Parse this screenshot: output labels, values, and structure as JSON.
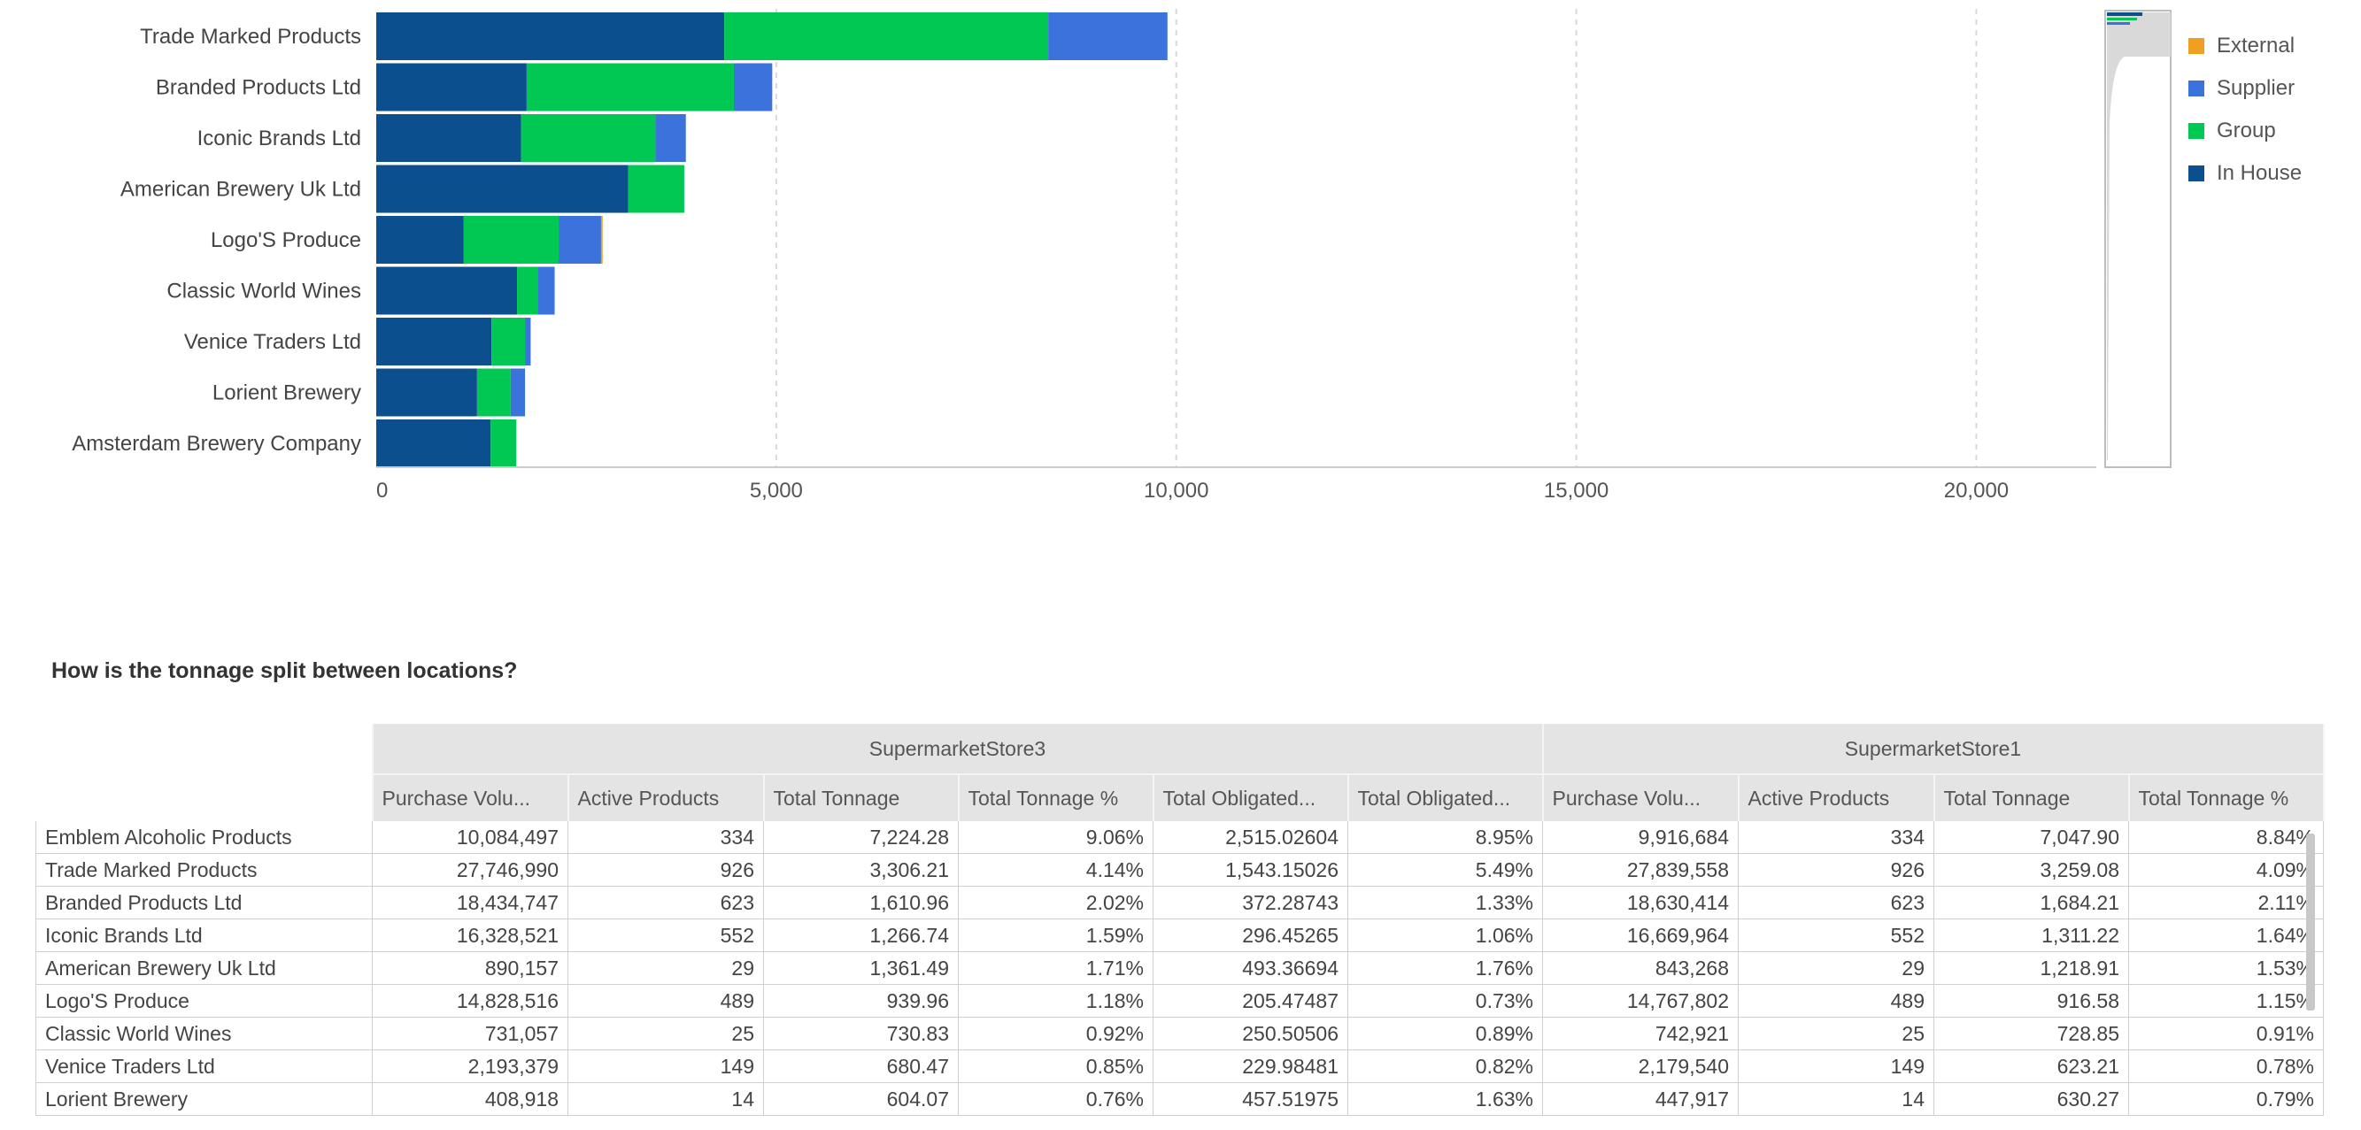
{
  "chart_data": {
    "type": "bar",
    "orientation": "horizontal",
    "stacked": true,
    "categories": [
      "Trade Marked Products",
      "Branded Products Ltd",
      "Iconic Brands Ltd",
      "American Brewery Uk Ltd",
      "Logo'S Produce",
      "Classic World Wines",
      "Venice Traders Ltd",
      "Lorient Brewery",
      "Amsterdam Brewery Company"
    ],
    "series": [
      {
        "name": "In House",
        "color": "#0b4f8f",
        "values": [
          4350,
          1880,
          1810,
          3150,
          1090,
          1760,
          1440,
          1260,
          1430
        ]
      },
      {
        "name": "Group",
        "color": "#00c853",
        "values": [
          4050,
          2590,
          1680,
          700,
          1190,
          260,
          420,
          420,
          320
        ]
      },
      {
        "name": "Supplier",
        "color": "#3b72db",
        "values": [
          1490,
          480,
          380,
          0,
          530,
          210,
          70,
          180,
          0
        ]
      },
      {
        "name": "External",
        "color": "#f0a020",
        "values": [
          0,
          0,
          0,
          0,
          20,
          0,
          0,
          0,
          0
        ]
      }
    ],
    "xlim": [
      0,
      21500
    ],
    "xticks": [
      0,
      5000,
      10000,
      15000,
      20000
    ],
    "xtick_labels": [
      "0",
      "5,000",
      "10,000",
      "15,000",
      "20,000"
    ],
    "grid": "vertical dashed",
    "legend": "right",
    "legend_order": [
      "External",
      "Supplier",
      "Group",
      "In House"
    ]
  },
  "section_title": "How is the tonnage split between locations?",
  "table": {
    "groups": [
      {
        "label": "SupermarketStore3",
        "span": 6
      },
      {
        "label": "SupermarketStore1",
        "span": 4
      }
    ],
    "columns": [
      "Purchase Volu...",
      "Active Products",
      "Total Tonnage",
      "Total Tonnage %",
      "Total Obligated...",
      "Total Obligated...",
      "Purchase Volu...",
      "Active Products",
      "Total Tonnage",
      "Total Tonnage %"
    ],
    "rows": [
      {
        "label": "Emblem Alcoholic Products",
        "cells": [
          "10,084,497",
          "334",
          "7,224.28",
          "9.06%",
          "2,515.02604",
          "8.95%",
          "9,916,684",
          "334",
          "7,047.90",
          "8.84%"
        ]
      },
      {
        "label": "Trade Marked Products",
        "cells": [
          "27,746,990",
          "926",
          "3,306.21",
          "4.14%",
          "1,543.15026",
          "5.49%",
          "27,839,558",
          "926",
          "3,259.08",
          "4.09%"
        ]
      },
      {
        "label": "Branded Products Ltd",
        "cells": [
          "18,434,747",
          "623",
          "1,610.96",
          "2.02%",
          "372.28743",
          "1.33%",
          "18,630,414",
          "623",
          "1,684.21",
          "2.11%"
        ]
      },
      {
        "label": "Iconic Brands Ltd",
        "cells": [
          "16,328,521",
          "552",
          "1,266.74",
          "1.59%",
          "296.45265",
          "1.06%",
          "16,669,964",
          "552",
          "1,311.22",
          "1.64%"
        ]
      },
      {
        "label": "American Brewery Uk Ltd",
        "cells": [
          "890,157",
          "29",
          "1,361.49",
          "1.71%",
          "493.36694",
          "1.76%",
          "843,268",
          "29",
          "1,218.91",
          "1.53%"
        ]
      },
      {
        "label": "Logo'S Produce",
        "cells": [
          "14,828,516",
          "489",
          "939.96",
          "1.18%",
          "205.47487",
          "0.73%",
          "14,767,802",
          "489",
          "916.58",
          "1.15%"
        ]
      },
      {
        "label": "Classic World Wines",
        "cells": [
          "731,057",
          "25",
          "730.83",
          "0.92%",
          "250.50506",
          "0.89%",
          "742,921",
          "25",
          "728.85",
          "0.91%"
        ]
      },
      {
        "label": "Venice Traders Ltd",
        "cells": [
          "2,193,379",
          "149",
          "680.47",
          "0.85%",
          "229.98481",
          "0.82%",
          "2,179,540",
          "149",
          "623.21",
          "0.78%"
        ]
      },
      {
        "label": "Lorient Brewery",
        "cells": [
          "408,918",
          "14",
          "604.07",
          "0.76%",
          "457.51975",
          "1.63%",
          "447,917",
          "14",
          "630.27",
          "0.79%"
        ]
      }
    ]
  }
}
